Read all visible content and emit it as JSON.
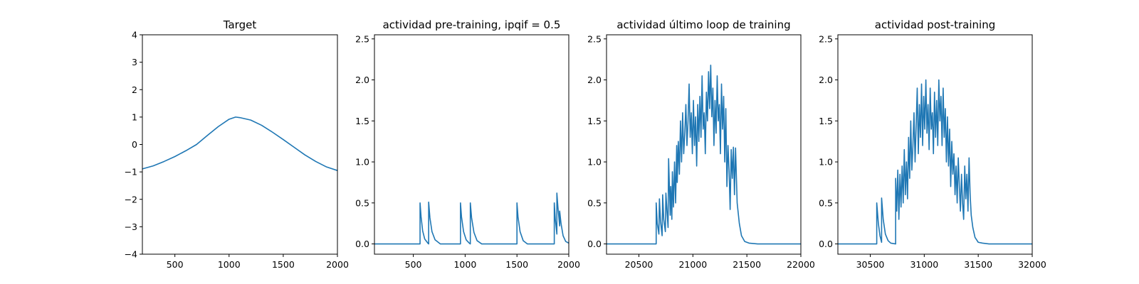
{
  "chart_data": [
    {
      "type": "line",
      "title": "Target",
      "xlabel": "",
      "ylabel": "",
      "xlim": [
        200,
        2000
      ],
      "ylim": [
        -4,
        4
      ],
      "xticks": [
        500,
        1000,
        1500,
        2000
      ],
      "xticklabels": [
        "500",
        "1000",
        "1500",
        "2000"
      ],
      "yticks": [
        -4,
        -3,
        -2,
        -1,
        0,
        1,
        2,
        3,
        4
      ],
      "yticklabels": [
        "−4",
        "−3",
        "−2",
        "−1",
        "0",
        "1",
        "2",
        "3",
        "4"
      ],
      "grid": false,
      "color": "#1f77b4",
      "series": [
        {
          "x": [
            200,
            300,
            400,
            500,
            600,
            700,
            800,
            900,
            1000,
            1060,
            1100,
            1200,
            1300,
            1400,
            1500,
            1600,
            1700,
            1800,
            1900,
            2000
          ],
          "y": [
            -0.89,
            -0.78,
            -0.62,
            -0.44,
            -0.23,
            0.0,
            0.33,
            0.65,
            0.92,
            1.0,
            0.98,
            0.89,
            0.7,
            0.45,
            0.18,
            -0.1,
            -0.38,
            -0.62,
            -0.82,
            -0.95
          ]
        }
      ]
    },
    {
      "type": "line",
      "title": "actividad pre-training, ipqif = 0.5",
      "xlabel": "",
      "ylabel": "",
      "xlim": [
        125,
        2000
      ],
      "ylim": [
        -0.125,
        2.55
      ],
      "xticks": [
        500,
        1000,
        1500,
        2000
      ],
      "xticklabels": [
        "500",
        "1000",
        "1500",
        "2000"
      ],
      "yticks": [
        0.0,
        0.5,
        1.0,
        1.5,
        2.0,
        2.5
      ],
      "yticklabels": [
        "0.0",
        "0.5",
        "1.0",
        "1.5",
        "2.0",
        "2.5"
      ],
      "grid": false,
      "color": "#1f77b4",
      "series": [
        {
          "x": [
            125,
            565,
            565,
            575,
            590,
            610,
            640,
            648,
            648,
            660,
            680,
            710,
            760,
            955,
            955,
            965,
            985,
            1010,
            1040,
            1050,
            1050,
            1062,
            1085,
            1115,
            1160,
            1500,
            1500,
            1510,
            1530,
            1560,
            1600,
            1860,
            1860,
            1870,
            1885,
            1885,
            1895,
            1912,
            1912,
            1925,
            1945,
            1970,
            2000
          ],
          "y": [
            0,
            0,
            0.5,
            0.33,
            0.16,
            0.06,
            0.01,
            0,
            0.51,
            0.32,
            0.15,
            0.05,
            0,
            0,
            0.5,
            0.33,
            0.15,
            0.05,
            0.01,
            0,
            0.5,
            0.32,
            0.14,
            0.04,
            0,
            0,
            0.5,
            0.33,
            0.15,
            0.04,
            0,
            0,
            0.5,
            0.3,
            0.12,
            0.62,
            0.45,
            0.22,
            0.4,
            0.25,
            0.1,
            0.03,
            0.01
          ]
        }
      ]
    },
    {
      "type": "line",
      "title": "actividad último loop de training",
      "xlabel": "",
      "ylabel": "",
      "xlim": [
        20200,
        22000
      ],
      "ylim": [
        -0.125,
        2.55
      ],
      "xticks": [
        20500,
        21000,
        21500,
        22000
      ],
      "xticklabels": [
        "20500",
        "21000",
        "21500",
        "22000"
      ],
      "yticks": [
        0.0,
        0.5,
        1.0,
        1.5,
        2.0,
        2.5
      ],
      "yticklabels": [
        "0.0",
        "0.5",
        "1.0",
        "1.5",
        "2.0",
        "2.5"
      ],
      "grid": false,
      "color": "#1f77b4",
      "series": [
        {
          "x": [
            20200,
            20660,
            20660,
            20670,
            20685,
            20690,
            20700,
            20715,
            20720,
            20730,
            20745,
            20750,
            20760,
            20770,
            20775,
            20790,
            20795,
            20805,
            20810,
            20820,
            20830,
            20840,
            20850,
            20855,
            20865,
            20875,
            20885,
            20895,
            20905,
            20915,
            20925,
            20935,
            20945,
            20955,
            20965,
            20975,
            20985,
            20995,
            21005,
            21015,
            21025,
            21035,
            21045,
            21055,
            21065,
            21075,
            21085,
            21095,
            21105,
            21115,
            21125,
            21135,
            21145,
            21155,
            21165,
            21175,
            21185,
            21195,
            21205,
            21215,
            21225,
            21235,
            21245,
            21255,
            21265,
            21275,
            21285,
            21295,
            21305,
            21315,
            21325,
            21335,
            21345,
            21355,
            21365,
            21375,
            21385,
            21395,
            21410,
            21430,
            21450,
            21480,
            21520,
            21600,
            22000
          ],
          "y": [
            0,
            0,
            0.5,
            0.25,
            0.12,
            0.55,
            0.28,
            0.1,
            0.6,
            0.3,
            0.15,
            0.62,
            0.4,
            0.2,
            1.04,
            0.35,
            0.7,
            0.3,
            0.88,
            0.45,
            1.0,
            0.5,
            1.2,
            0.75,
            1.25,
            0.85,
            1.5,
            1.0,
            1.6,
            1.1,
            1.35,
            1.7,
            1.2,
            1.5,
            1.95,
            1.3,
            1.6,
            1.1,
            1.75,
            1.2,
            1.55,
            0.95,
            1.7,
            1.25,
            1.8,
            1.3,
            2.05,
            1.4,
            1.6,
            1.1,
            1.85,
            1.5,
            2.1,
            1.65,
            2.18,
            1.55,
            1.9,
            1.2,
            1.75,
            1.35,
            2.05,
            1.5,
            1.7,
            1.1,
            1.95,
            1.4,
            1.8,
            1.0,
            1.65,
            0.7,
            1.2,
            0.9,
            0.42,
            1.15,
            0.8,
            1.18,
            0.6,
            1.17,
            0.5,
            0.25,
            0.1,
            0.03,
            0.01,
            0,
            0
          ]
        }
      ]
    },
    {
      "type": "line",
      "title": "actividad post-training",
      "xlabel": "",
      "ylabel": "",
      "xlim": [
        30200,
        32000
      ],
      "ylim": [
        -0.125,
        2.55
      ],
      "xticks": [
        30500,
        31000,
        31500,
        32000
      ],
      "xticklabels": [
        "30500",
        "31000",
        "31500",
        "32000"
      ],
      "yticks": [
        0.0,
        0.5,
        1.0,
        1.5,
        2.0,
        2.5
      ],
      "yticklabels": [
        "0.0",
        "0.5",
        "1.0",
        "1.5",
        "2.0",
        "2.5"
      ],
      "grid": false,
      "color": "#1f77b4",
      "series": [
        {
          "x": [
            30200,
            30560,
            30560,
            30575,
            30590,
            30605,
            30605,
            30620,
            30640,
            30665,
            30690,
            30735,
            30735,
            30745,
            30755,
            30765,
            30775,
            30785,
            30795,
            30805,
            30815,
            30825,
            30835,
            30845,
            30855,
            30865,
            30875,
            30885,
            30895,
            30905,
            30915,
            30925,
            30935,
            30945,
            30955,
            30965,
            30975,
            30985,
            30995,
            31005,
            31015,
            31025,
            31035,
            31045,
            31055,
            31065,
            31075,
            31085,
            31095,
            31105,
            31115,
            31125,
            31135,
            31145,
            31155,
            31165,
            31175,
            31185,
            31195,
            31205,
            31215,
            31225,
            31235,
            31245,
            31255,
            31265,
            31275,
            31285,
            31295,
            31305,
            31315,
            31325,
            31335,
            31345,
            31355,
            31365,
            31375,
            31385,
            31395,
            31405,
            31415,
            31425,
            31435,
            31450,
            31470,
            31500,
            31540,
            31600,
            32000
          ],
          "y": [
            0,
            0,
            0.5,
            0.25,
            0.1,
            0.02,
            0.56,
            0.3,
            0.12,
            0.04,
            0.01,
            0,
            0.8,
            0.4,
            0.9,
            0.3,
            0.85,
            0.45,
            0.95,
            0.5,
            1.15,
            0.6,
            1.0,
            0.55,
            1.3,
            0.8,
            1.5,
            0.9,
            1.2,
            1.6,
            1.0,
            1.45,
            1.9,
            1.1,
            1.7,
            1.3,
            1.95,
            1.2,
            1.8,
            1.4,
            2.0,
            1.35,
            1.7,
            1.15,
            1.9,
            1.4,
            1.6,
            1.1,
            1.85,
            1.3,
            1.75,
            1.2,
            2.0,
            1.5,
            1.8,
            1.2,
            1.9,
            1.3,
            1.65,
            1.0,
            1.55,
            0.95,
            1.4,
            0.7,
            1.25,
            0.85,
            1.1,
            0.6,
            0.95,
            0.5,
            1.05,
            0.7,
            0.4,
            0.85,
            0.5,
            0.3,
            0.95,
            0.55,
            0.85,
            0.4,
            1.05,
            0.6,
            0.35,
            0.2,
            0.08,
            0.02,
            0.01,
            0,
            0
          ]
        }
      ]
    }
  ]
}
